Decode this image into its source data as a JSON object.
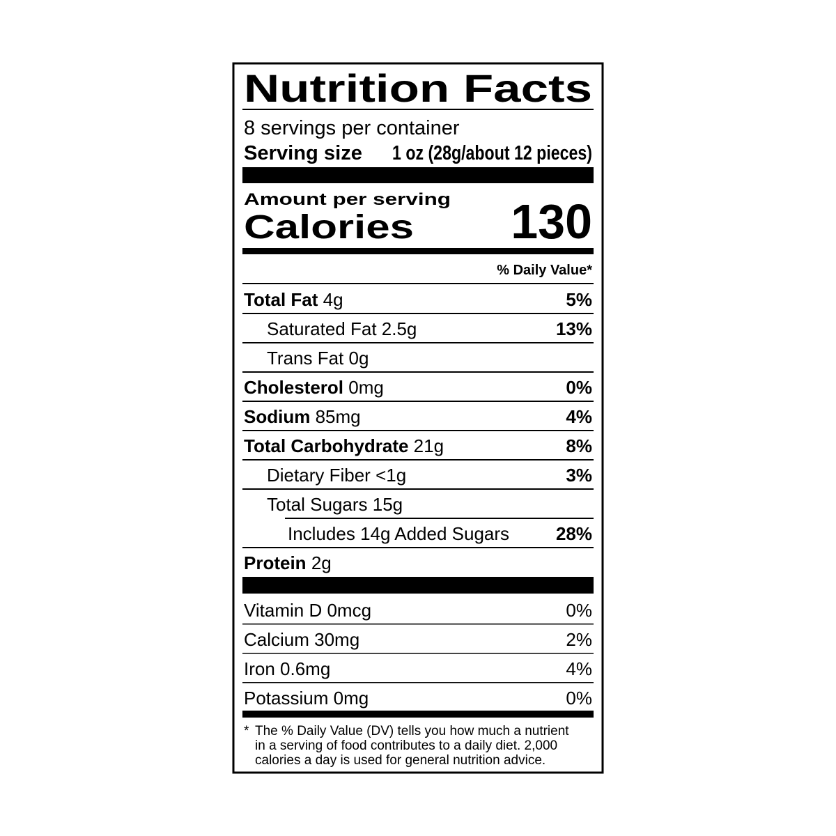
{
  "title": "Nutrition Facts",
  "servings": "8 servings per container",
  "serving_size": {
    "label": "Serving size",
    "value": "1 oz (28g/about 12 pieces)"
  },
  "amount_per_serving": "Amount per serving",
  "calories": {
    "label": "Calories",
    "value": "130"
  },
  "daily_value_header": "% Daily Value*",
  "nutrients": [
    {
      "name": "Total Fat",
      "amount": "4g",
      "dv": "5%",
      "sub": [
        {
          "name": "Saturated Fat",
          "amount": "2.5g",
          "dv": "13%"
        },
        {
          "name": "Trans Fat",
          "amount": "0g"
        }
      ]
    },
    {
      "name": "Cholesterol",
      "amount": "0mg",
      "dv": "0%"
    },
    {
      "name": "Sodium",
      "amount": "85mg",
      "dv": "4%"
    },
    {
      "name": "Total Carbohydrate",
      "amount": "21g",
      "dv": "8%",
      "sub": [
        {
          "name": "Dietary Fiber",
          "amount": "<1g",
          "dv": "3%"
        },
        {
          "name": "Total Sugars",
          "amount": "15g",
          "sub": [
            {
              "name": "Includes 14g Added Sugars",
              "dv": "28%"
            }
          ]
        }
      ]
    },
    {
      "name": "Protein",
      "amount": "2g"
    }
  ],
  "vitamins": [
    {
      "name": "Vitamin D 0mcg",
      "dv": "0%"
    },
    {
      "name": "Calcium 30mg",
      "dv": "2%"
    },
    {
      "name": "Iron 0.6mg",
      "dv": "4%"
    },
    {
      "name": "Potassium 0mg",
      "dv": "0%"
    }
  ],
  "footnote": {
    "mark": "*",
    "lines": [
      "The % Daily Value (DV) tells you how much a nutrient",
      "in a serving of food contributes to a daily diet. 2,000",
      "calories a day is used for general nutrition advice."
    ]
  }
}
